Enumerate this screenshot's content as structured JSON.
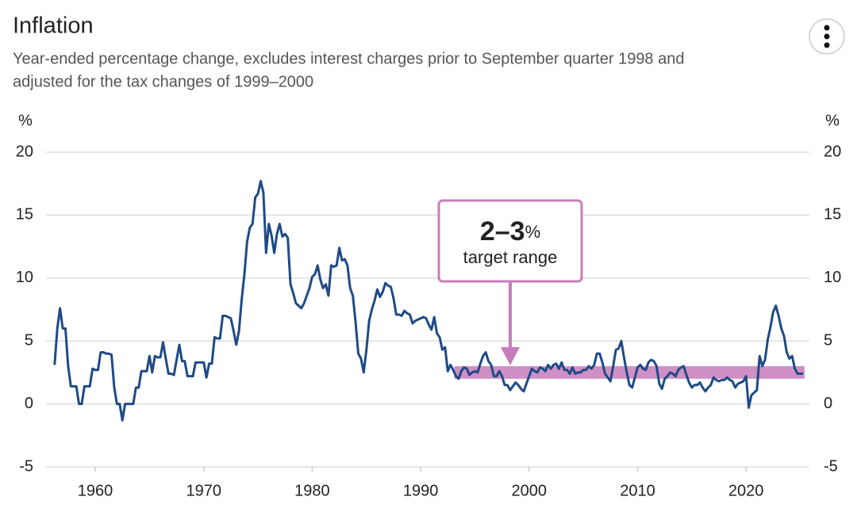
{
  "chart_data": {
    "type": "line",
    "title": "Inflation",
    "subtitle": [
      "Year-ended percentage change, excludes interest charges prior to September quarter 1998 and",
      "adjusted for the tax changes of 1999–2000"
    ],
    "y_unit_left": "%",
    "y_unit_right": "%",
    "color": "#1f4a86",
    "xlim": [
      1955.46,
      2025.84
    ],
    "xticks": [
      1960,
      1970,
      1980,
      1990,
      2000,
      2010,
      2020
    ],
    "ylim": [
      -5,
      20
    ],
    "yticks": [
      -5,
      0,
      5,
      10,
      15,
      20
    ],
    "grid": true,
    "target_range": {
      "value_text": "2–3",
      "unit_text": "%",
      "text": "target range",
      "x": [
        1993.1,
        2025.4
      ],
      "y": [
        2,
        3
      ],
      "color": "#c77dbb"
    },
    "x": [
      1956.25,
      1956.5,
      1956.75,
      1957,
      1957.25,
      1957.5,
      1957.75,
      1958,
      1958.25,
      1958.5,
      1958.75,
      1959,
      1959.25,
      1959.5,
      1959.75,
      1960,
      1960.25,
      1960.5,
      1960.75,
      1961,
      1961.25,
      1961.5,
      1961.75,
      1962,
      1962.25,
      1962.5,
      1962.75,
      1963,
      1963.25,
      1963.5,
      1963.75,
      1964,
      1964.25,
      1964.5,
      1964.75,
      1965,
      1965.25,
      1965.5,
      1965.75,
      1966,
      1966.25,
      1966.5,
      1966.75,
      1967,
      1967.25,
      1967.5,
      1967.75,
      1968,
      1968.25,
      1968.5,
      1968.75,
      1969,
      1969.25,
      1969.5,
      1969.75,
      1970,
      1970.25,
      1970.5,
      1970.75,
      1971,
      1971.25,
      1971.5,
      1971.75,
      1972,
      1972.25,
      1972.5,
      1972.75,
      1973,
      1973.25,
      1973.5,
      1973.75,
      1974,
      1974.25,
      1974.5,
      1974.75,
      1975,
      1975.25,
      1975.5,
      1975.75,
      1976,
      1976.25,
      1976.5,
      1976.75,
      1977,
      1977.25,
      1977.5,
      1977.75,
      1978,
      1978.25,
      1978.5,
      1978.75,
      1979,
      1979.25,
      1979.5,
      1979.75,
      1980,
      1980.25,
      1980.5,
      1980.75,
      1981,
      1981.25,
      1981.5,
      1981.75,
      1982,
      1982.25,
      1982.5,
      1982.75,
      1983,
      1983.25,
      1983.5,
      1983.75,
      1984,
      1984.25,
      1984.5,
      1984.75,
      1985,
      1985.25,
      1985.5,
      1985.75,
      1986,
      1986.25,
      1986.5,
      1986.75,
      1987,
      1987.25,
      1987.5,
      1987.75,
      1988,
      1988.25,
      1988.5,
      1988.75,
      1989,
      1989.25,
      1989.5,
      1989.75,
      1990,
      1990.25,
      1990.5,
      1990.75,
      1991,
      1991.25,
      1991.5,
      1991.75,
      1992,
      1992.25,
      1992.5,
      1992.75,
      1993,
      1993.25,
      1993.5,
      1993.75,
      1994,
      1994.25,
      1994.5,
      1994.75,
      1995,
      1995.25,
      1995.5,
      1995.75,
      1996,
      1996.25,
      1996.5,
      1996.75,
      1997,
      1997.25,
      1997.5,
      1997.75,
      1998,
      1998.25,
      1998.5,
      1998.75,
      1999,
      1999.25,
      1999.5,
      1999.75,
      2000,
      2000.25,
      2000.5,
      2000.75,
      2001,
      2001.25,
      2001.5,
      2001.75,
      2002,
      2002.25,
      2002.5,
      2002.75,
      2003,
      2003.25,
      2003.5,
      2003.75,
      2004,
      2004.25,
      2004.5,
      2004.75,
      2005,
      2005.25,
      2005.5,
      2005.75,
      2006,
      2006.25,
      2006.5,
      2006.75,
      2007,
      2007.25,
      2007.5,
      2007.75,
      2008,
      2008.25,
      2008.5,
      2008.75,
      2009,
      2009.25,
      2009.5,
      2009.75,
      2010,
      2010.25,
      2010.5,
      2010.75,
      2011,
      2011.25,
      2011.5,
      2011.75,
      2012,
      2012.25,
      2012.5,
      2012.75,
      2013,
      2013.25,
      2013.5,
      2013.75,
      2014,
      2014.25,
      2014.5,
      2014.75,
      2015,
      2015.25,
      2015.5,
      2015.75,
      2016,
      2016.25,
      2016.5,
      2016.75,
      2017,
      2017.25,
      2017.5,
      2017.75,
      2018,
      2018.25,
      2018.5,
      2018.75,
      2019,
      2019.25,
      2019.5,
      2019.75,
      2020,
      2020.25,
      2020.5,
      2020.75,
      2021,
      2021.25,
      2021.5,
      2021.75,
      2022,
      2022.25,
      2022.5,
      2022.75,
      2023,
      2023.25,
      2023.5,
      2023.75,
      2024,
      2024.25,
      2024.5,
      2024.75,
      2025,
      2025.25
    ],
    "values": [
      3.1,
      6,
      7.6,
      6,
      6,
      3,
      1.4,
      1.4,
      1.4,
      0,
      0,
      1.4,
      1.4,
      1.4,
      2.8,
      2.7,
      2.7,
      4.1,
      4.1,
      4,
      4,
      3.9,
      1.3,
      0,
      0,
      -1.3,
      0,
      0,
      0,
      0,
      1.3,
      1.3,
      2.6,
      2.6,
      2.6,
      3.8,
      2.5,
      3.8,
      3.7,
      3.7,
      4.9,
      3.6,
      2.4,
      2.4,
      2.3,
      3.5,
      4.7,
      3.4,
      3.4,
      2.2,
      2.2,
      2.2,
      3.3,
      3.3,
      3.3,
      3.3,
      2.1,
      3.2,
      3.2,
      5.3,
      5.2,
      5.2,
      7,
      7,
      6.9,
      6.8,
      5.8,
      4.7,
      5.8,
      8.3,
      10.3,
      12.9,
      14,
      14.3,
      16.4,
      16.7,
      17.7,
      16.8,
      12,
      14.3,
      13.4,
      12,
      13.5,
      14.3,
      13.3,
      13.5,
      13.2,
      9.5,
      8.8,
      8,
      7.8,
      7.6,
      8,
      8.6,
      9.2,
      10.1,
      10.3,
      11,
      9.9,
      9.2,
      9.5,
      8.6,
      11,
      10.9,
      11,
      12.4,
      11.4,
      11.5,
      11,
      9.2,
      8.6,
      6.5,
      4,
      3.6,
      2.5,
      4.3,
      6.6,
      7.5,
      8.2,
      9.1,
      8.5,
      8.9,
      9.6,
      9.4,
      9.3,
      8.4,
      7.1,
      7.1,
      7,
      7.4,
      7.2,
      7.1,
      6.4,
      6.6,
      6.7,
      6.8,
      6.9,
      6.8,
      6.3,
      5.9,
      6.9,
      5.6,
      5.3,
      4.3,
      4.5,
      2.6,
      3.1,
      2.7,
      2.2,
      2,
      2.6,
      2.9,
      2.8,
      2.3,
      2.5,
      2.6,
      2.5,
      3.2,
      3.8,
      4.1,
      3.4,
      3.1,
      2.2,
      2.2,
      2.6,
      2.2,
      1.5,
      1.5,
      1.1,
      1.4,
      1.7,
      1.5,
      1.2,
      1,
      1.6,
      2.2,
      2.8,
      2.6,
      2.5,
      2.9,
      2.8,
      2.6,
      3.1,
      2.8,
      3.1,
      3.2,
      2.8,
      3.3,
      2.7,
      2.7,
      2.4,
      2.9,
      2.4,
      2.5,
      2.5,
      2.7,
      2.7,
      3,
      2.8,
      3.1,
      4,
      4,
      3.3,
      2.4,
      2.1,
      1.8,
      3,
      4.3,
      4.4,
      5,
      3.7,
      2.5,
      1.5,
      1.3,
      2.1,
      2.9,
      3.1,
      2.8,
      2.7,
      3.3,
      3.5,
      3.4,
      3,
      1.6,
      1.2,
      2,
      2.2,
      2.5,
      2.4,
      2.2,
      2.7,
      2.9,
      3,
      2.3,
      1.7,
      1.3,
      1.5,
      1.5,
      1.7,
      1.3,
      1,
      1.3,
      1.5,
      2.1,
      1.9,
      1.8,
      1.9,
      1.9,
      2.1,
      1.9,
      1.8,
      1.3,
      1.6,
      1.7,
      1.8,
      2.2,
      -0.3,
      0.7,
      0.9,
      1.1,
      3.8,
      3,
      3.5,
      5.1,
      6.1,
      7.3,
      7.8,
      7,
      6,
      5.4,
      4.1,
      3.6,
      3.8,
      2.8,
      2.4,
      2.4,
      2.4
    ]
  }
}
